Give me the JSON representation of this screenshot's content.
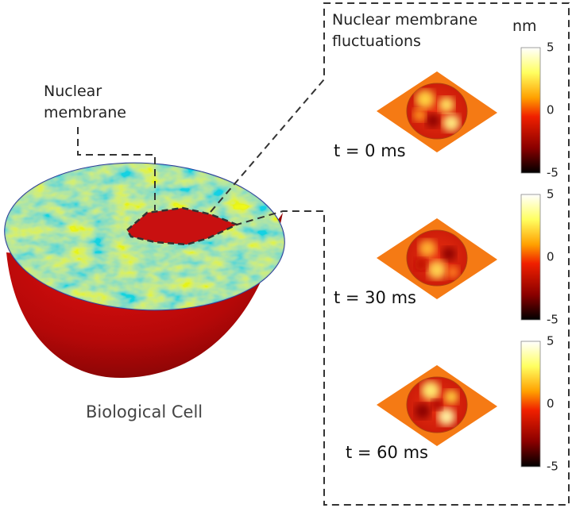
{
  "cell": {
    "label": "Nuclear membrane",
    "caption": "Biological Cell"
  },
  "panel": {
    "title": "Nuclear membrane fluctuations",
    "unit": "nm",
    "frames": [
      {
        "time": "t = 0 ms",
        "colorbar_ticks": [
          5,
          0,
          -5
        ]
      },
      {
        "time": "t = 30 ms",
        "colorbar_ticks": [
          5,
          0,
          -5
        ]
      },
      {
        "time": "t = 60 ms",
        "colorbar_ticks": [
          5,
          0,
          -5
        ]
      }
    ]
  }
}
